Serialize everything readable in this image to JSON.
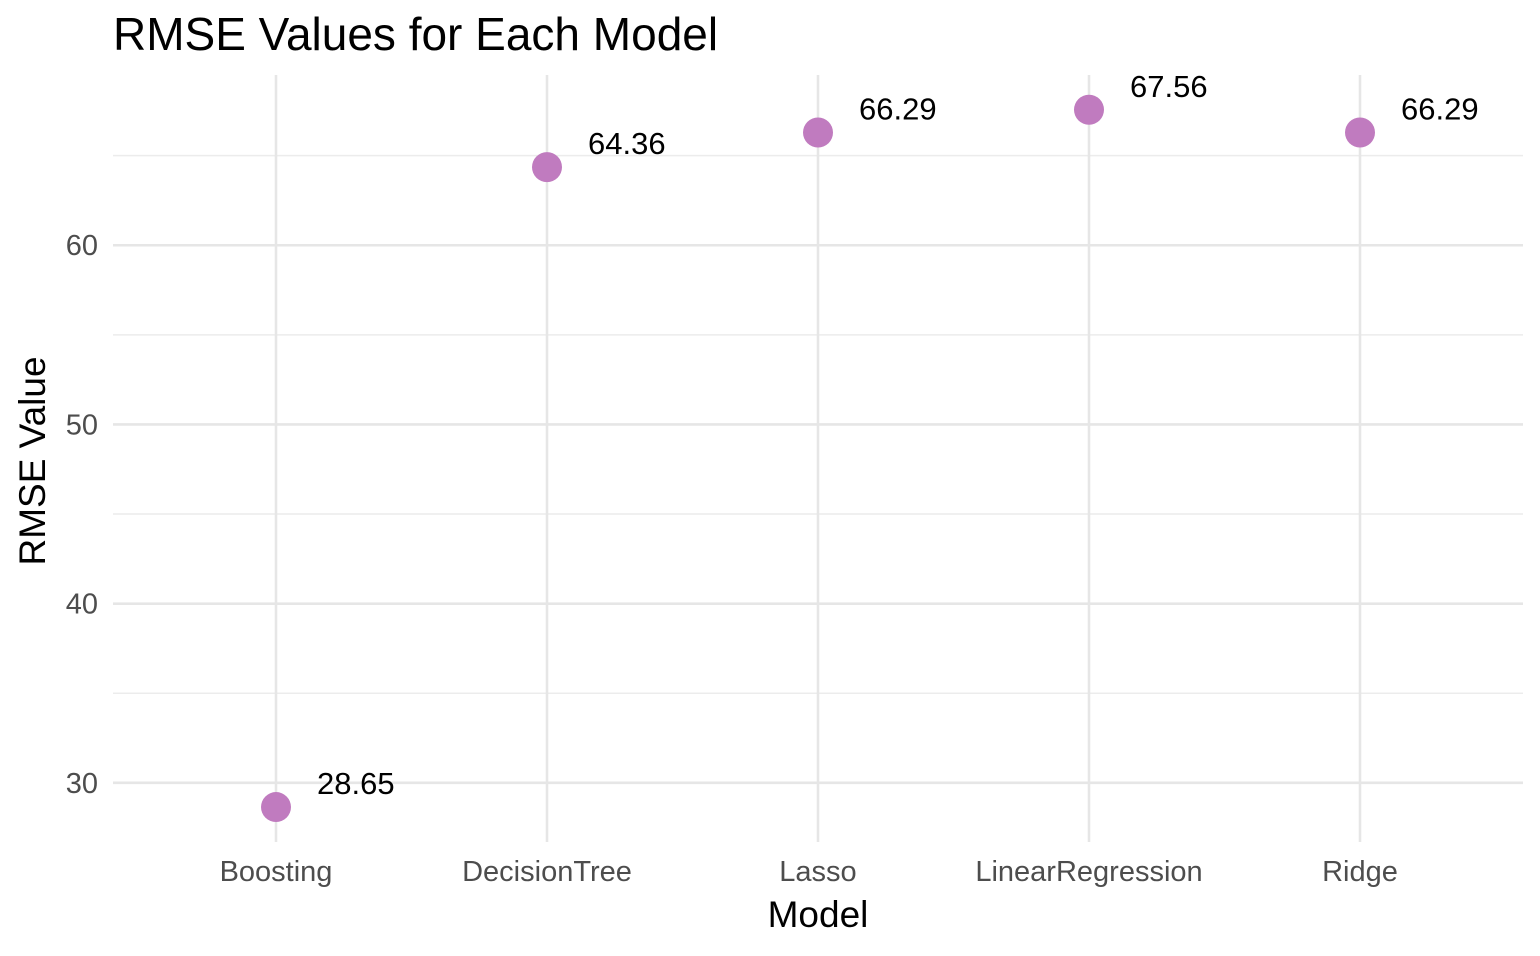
{
  "chart_data": {
    "type": "scatter",
    "title": "RMSE Values for Each Model",
    "xlabel": "Model",
    "ylabel": "RMSE Value",
    "categories": [
      "Boosting",
      "DecisionTree",
      "Lasso",
      "LinearRegression",
      "Ridge"
    ],
    "values": [
      28.65,
      64.36,
      66.29,
      67.56,
      66.29
    ],
    "data_labels": [
      "28.65",
      "64.36",
      "66.29",
      "67.56",
      "66.29"
    ],
    "y_ticks": [
      30,
      40,
      50,
      60
    ],
    "y_tick_labels": [
      "30",
      "40",
      "50",
      "60"
    ],
    "y_minor_ticks": [
      35,
      45,
      55,
      65
    ],
    "ylim": [
      26.7,
      69.5
    ],
    "grid": true,
    "legend": "none",
    "point_color": "#c07bbf"
  }
}
